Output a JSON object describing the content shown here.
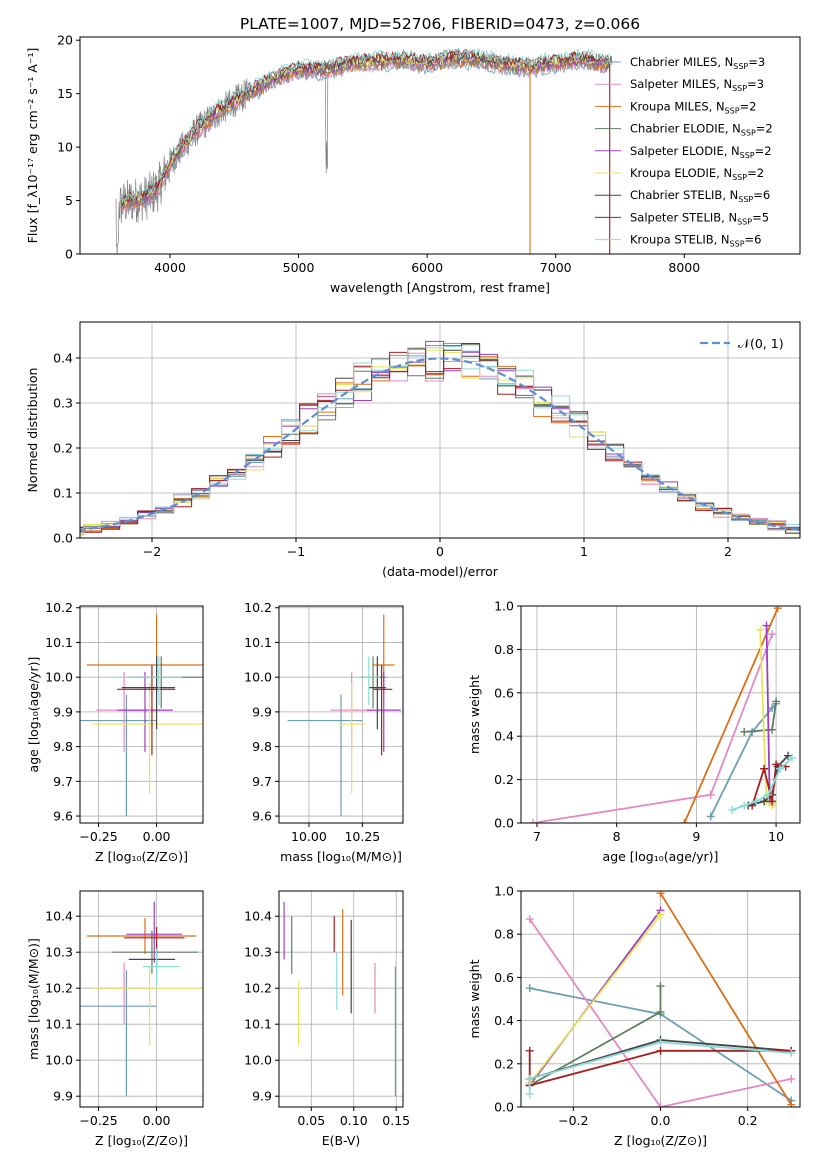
{
  "title": "PLATE=1007, MJD=52706, FIBERID=0473, z=0.066",
  "colors": [
    "#6a9fb5",
    "#e28ac8",
    "#d96f17",
    "#5f7f5f",
    "#9b3fbf",
    "#e8e35a",
    "#444444",
    "#a51f1f",
    "#8adbd8"
  ],
  "chart_data": [
    {
      "id": "spectrum",
      "type": "line",
      "xlabel": "wavelength [Angstrom, rest frame]",
      "ylabel": "Flux [f_λ10⁻¹⁷ erg cm⁻² s⁻¹ A⁻¹]",
      "xlim": [
        3300,
        8900
      ],
      "ylim": [
        0,
        20.3
      ],
      "xticks": [
        4000,
        5000,
        6000,
        7000,
        8000
      ],
      "yticks": [
        0,
        5,
        10,
        15,
        20
      ],
      "grid": false,
      "legend": "upper-right",
      "envelope_x": [
        3600,
        3700,
        3800,
        3900,
        4000,
        4100,
        4200,
        4300,
        4400,
        4600,
        4800,
        5000,
        5200,
        5400,
        5600,
        5800,
        6000,
        6200,
        6400,
        6600,
        6800,
        7000,
        7200,
        7400
      ],
      "envelope_y": [
        4.5,
        5,
        5.2,
        6,
        8.5,
        10,
        11.5,
        12.5,
        13.5,
        15,
        16.3,
        17.3,
        17.2,
        17.8,
        18,
        18.2,
        17.8,
        18.3,
        18.2,
        17.7,
        17.5,
        17.9,
        18.2,
        17.8
      ],
      "dropouts": [
        {
          "x": 6800,
          "series": 2
        },
        {
          "x": 7420,
          "series": 7
        }
      ],
      "legend_entries": [
        {
          "label": "Chabrier MILES",
          "nssp": "3"
        },
        {
          "label": "Salpeter MILES",
          "nssp": "3"
        },
        {
          "label": "Kroupa MILES",
          "nssp": "2"
        },
        {
          "label": "Chabrier ELODIE",
          "nssp": "2"
        },
        {
          "label": "Salpeter ELODIE",
          "nssp": "2"
        },
        {
          "label": "Kroupa ELODIE",
          "nssp": "2"
        },
        {
          "label": "Chabrier STELIB",
          "nssp": "6"
        },
        {
          "label": "Salpeter STELIB",
          "nssp": "5"
        },
        {
          "label": "Kroupa STELIB",
          "nssp": "6"
        }
      ]
    },
    {
      "id": "residuals",
      "type": "histogram",
      "xlabel": "(data-model)/error",
      "ylabel": "Normed distribution",
      "xlim": [
        -2.5,
        2.5
      ],
      "ylim": [
        0,
        0.48
      ],
      "xticks": [
        -2,
        -1,
        0,
        1,
        2
      ],
      "yticks": [
        0.0,
        0.1,
        0.2,
        0.3,
        0.4
      ],
      "grid": true,
      "legend": "upper-right",
      "reference_label": "𝒩(0, 1)",
      "bin_width": 0.125
    },
    {
      "id": "age-vs-Z",
      "type": "errorbar",
      "xlabel": "Z [log₁₀(Z/Z⊙)]",
      "ylabel": "age  [log₁₀(age/yr)]",
      "xlim": [
        -0.33,
        0.2
      ],
      "ylim": [
        9.58,
        10.205
      ],
      "xticks": [
        -0.25,
        0.0
      ],
      "yticks": [
        9.6,
        9.7,
        9.8,
        9.9,
        10.0,
        10.1,
        10.2
      ],
      "grid": true,
      "points": [
        {
          "s": 0,
          "x": -0.13,
          "y": 9.875,
          "xerr": [
            0.25,
            0.13
          ],
          "yerr": [
            0.275,
            0.075
          ]
        },
        {
          "s": 1,
          "x": -0.14,
          "y": 9.905,
          "xerr": [
            0.12,
            0.14
          ],
          "yerr": [
            0.12,
            0.11
          ]
        },
        {
          "s": 2,
          "x": 0.0,
          "y": 10.035,
          "xerr": [
            0.3,
            0.2
          ],
          "yerr": [
            0.08,
            0.145
          ]
        },
        {
          "s": 3,
          "x": 0.02,
          "y": 10.0,
          "xerr": [
            0.14,
            0.2
          ],
          "yerr": [
            0.09,
            0.06
          ]
        },
        {
          "s": 4,
          "x": -0.05,
          "y": 9.905,
          "xerr": [
            0.12,
            0.12
          ],
          "yerr": [
            0.12,
            0.11
          ]
        },
        {
          "s": 5,
          "x": -0.03,
          "y": 9.865,
          "xerr": [
            0.25,
            0.25
          ],
          "yerr": [
            0.2,
            0.12
          ]
        },
        {
          "s": 6,
          "x": 0.0,
          "y": 9.97,
          "xerr": [
            0.15,
            0.08
          ],
          "yerr": [
            0.12,
            0.09
          ]
        },
        {
          "s": 7,
          "x": -0.02,
          "y": 9.965,
          "xerr": [
            0.15,
            0.1
          ],
          "yerr": [
            0.19,
            0.07
          ]
        },
        {
          "s": 8,
          "x": 0.01,
          "y": 10.0,
          "xerr": [
            0.2,
            0.1
          ],
          "yerr": [
            0.08,
            0.06
          ]
        }
      ]
    },
    {
      "id": "age-vs-mass",
      "type": "errorbar",
      "xlabel": "mass [log₁₀(M/M⊙)]",
      "ylabel": "",
      "xlim": [
        9.86,
        10.44
      ],
      "ylim": [
        9.58,
        10.205
      ],
      "xticks": [
        10.0,
        10.25
      ],
      "yticks": [
        9.6,
        9.7,
        9.8,
        9.9,
        10.0,
        10.1,
        10.2
      ],
      "grid": true,
      "points": [
        {
          "s": 0,
          "x": 10.15,
          "y": 9.875,
          "xerr": [
            0.25,
            0.1
          ],
          "yerr": [
            0.275,
            0.075
          ]
        },
        {
          "s": 1,
          "x": 10.2,
          "y": 9.905,
          "xerr": [
            0.1,
            0.1
          ],
          "yerr": [
            0.12,
            0.11
          ]
        },
        {
          "s": 2,
          "x": 10.35,
          "y": 10.035,
          "xerr": [
            0.05,
            0.05
          ],
          "yerr": [
            0.08,
            0.145
          ]
        },
        {
          "s": 3,
          "x": 10.3,
          "y": 10.0,
          "xerr": [
            0.06,
            0.06
          ],
          "yerr": [
            0.09,
            0.06
          ]
        },
        {
          "s": 4,
          "x": 10.35,
          "y": 9.905,
          "xerr": [
            0.08,
            0.08
          ],
          "yerr": [
            0.12,
            0.11
          ]
        },
        {
          "s": 5,
          "x": 10.2,
          "y": 9.865,
          "xerr": [
            0.06,
            0.06
          ],
          "yerr": [
            0.2,
            0.12
          ]
        },
        {
          "s": 6,
          "x": 10.32,
          "y": 9.97,
          "xerr": [
            0.04,
            0.04
          ],
          "yerr": [
            0.12,
            0.09
          ]
        },
        {
          "s": 7,
          "x": 10.34,
          "y": 9.965,
          "xerr": [
            0.04,
            0.05
          ],
          "yerr": [
            0.19,
            0.07
          ]
        },
        {
          "s": 8,
          "x": 10.28,
          "y": 10.0,
          "xerr": [
            0.06,
            0.05
          ],
          "yerr": [
            0.08,
            0.06
          ]
        }
      ]
    },
    {
      "id": "mass-vs-Z",
      "type": "errorbar",
      "xlabel": "Z [log₁₀(Z/Z⊙)]",
      "ylabel": "mass [log₁₀(M/M⊙)]",
      "xlim": [
        -0.33,
        0.2
      ],
      "ylim": [
        9.87,
        10.47
      ],
      "xticks": [
        -0.25,
        0.0
      ],
      "yticks": [
        9.9,
        10.0,
        10.1,
        10.2,
        10.3,
        10.4
      ],
      "grid": true,
      "points": [
        {
          "s": 0,
          "x": -0.13,
          "y": 10.15,
          "xerr": [
            0.25,
            0.13
          ],
          "yerr": [
            0.25,
            0.1
          ]
        },
        {
          "s": 1,
          "x": -0.14,
          "y": 10.2,
          "xerr": [
            0.12,
            0.14
          ],
          "yerr": [
            0.1,
            0.07
          ]
        },
        {
          "s": 2,
          "x": -0.05,
          "y": 10.345,
          "xerr": [
            0.25,
            0.22
          ],
          "yerr": [
            0.05,
            0.05
          ]
        },
        {
          "s": 3,
          "x": -0.02,
          "y": 10.3,
          "xerr": [
            0.17,
            0.2
          ],
          "yerr": [
            0.06,
            0.06
          ]
        },
        {
          "s": 4,
          "x": -0.01,
          "y": 10.35,
          "xerr": [
            0.12,
            0.12
          ],
          "yerr": [
            0.08,
            0.09
          ]
        },
        {
          "s": 5,
          "x": -0.03,
          "y": 10.2,
          "xerr": [
            0.25,
            0.25
          ],
          "yerr": [
            0.16,
            0.06
          ]
        },
        {
          "s": 6,
          "x": 0.0,
          "y": 10.28,
          "xerr": [
            0.12,
            0.08
          ],
          "yerr": [
            0.04,
            0.04
          ]
        },
        {
          "s": 7,
          "x": 0.0,
          "y": 10.34,
          "xerr": [
            0.14,
            0.12
          ],
          "yerr": [
            0.04,
            0.03
          ]
        },
        {
          "s": 8,
          "x": 0.0,
          "y": 10.26,
          "xerr": [
            0.06,
            0.1
          ],
          "yerr": [
            0.05,
            0.05
          ]
        }
      ]
    },
    {
      "id": "mass-vs-EBV",
      "type": "errorbar",
      "xlabel": "E(B-V)",
      "ylabel": "",
      "xlim": [
        0.012,
        0.158
      ],
      "ylim": [
        9.87,
        10.47
      ],
      "xticks": [
        0.05,
        0.1,
        0.15
      ],
      "yticks": [
        9.9,
        10.0,
        10.1,
        10.2,
        10.3,
        10.4
      ],
      "grid": true,
      "points": [
        {
          "s": 0,
          "x": 0.149,
          "y": 10.08,
          "xerr": [
            0,
            0
          ],
          "yerr": [
            0.18,
            0.18
          ]
        },
        {
          "s": 1,
          "x": 0.125,
          "y": 10.2,
          "xerr": [
            0,
            0
          ],
          "yerr": [
            0.07,
            0.07
          ]
        },
        {
          "s": 2,
          "x": 0.087,
          "y": 10.3,
          "xerr": [
            0,
            0
          ],
          "yerr": [
            0.12,
            0.12
          ]
        },
        {
          "s": 3,
          "x": 0.027,
          "y": 10.32,
          "xerr": [
            0,
            0
          ],
          "yerr": [
            0.08,
            0.08
          ]
        },
        {
          "s": 4,
          "x": 0.018,
          "y": 10.36,
          "xerr": [
            0,
            0
          ],
          "yerr": [
            0.08,
            0.08
          ]
        },
        {
          "s": 5,
          "x": 0.035,
          "y": 10.13,
          "xerr": [
            0,
            0
          ],
          "yerr": [
            0.09,
            0.09
          ]
        },
        {
          "s": 6,
          "x": 0.097,
          "y": 10.26,
          "xerr": [
            0,
            0
          ],
          "yerr": [
            0.13,
            0.13
          ]
        },
        {
          "s": 7,
          "x": 0.077,
          "y": 10.35,
          "xerr": [
            0,
            0
          ],
          "yerr": [
            0.05,
            0.05
          ]
        },
        {
          "s": 8,
          "x": 0.08,
          "y": 10.22,
          "xerr": [
            0,
            0
          ],
          "yerr": [
            0.08,
            0.08
          ]
        }
      ]
    },
    {
      "id": "massweight-vs-age",
      "type": "line",
      "xlabel": "age  [log₁₀(age/yr)]",
      "ylabel": "mass weight",
      "xlim": [
        6.8,
        10.3
      ],
      "ylim": [
        0,
        1.0
      ],
      "xticks": [
        7,
        8,
        9,
        10
      ],
      "yticks": [
        0.0,
        0.2,
        0.4,
        0.6,
        0.8,
        1.0
      ],
      "grid": true,
      "series": [
        {
          "s": 0,
          "x": [
            9.18,
            9.7,
            9.95,
            10.0
          ],
          "y": [
            0.03,
            0.42,
            0.53,
            0.55
          ]
        },
        {
          "s": 1,
          "x": [
            6.95,
            9.18,
            9.95
          ],
          "y": [
            0.0,
            0.13,
            0.87
          ]
        },
        {
          "s": 2,
          "x": [
            8.85,
            10.02
          ],
          "y": [
            0.0,
            0.99
          ]
        },
        {
          "s": 3,
          "x": [
            9.6,
            9.95,
            10.0
          ],
          "y": [
            0.42,
            0.43,
            0.56
          ]
        },
        {
          "s": 4,
          "x": [
            9.88,
            9.92,
            9.95
          ],
          "y": [
            0.91,
            0.1,
            0.09
          ]
        },
        {
          "s": 5,
          "x": [
            9.8,
            9.88,
            9.95,
            9.97
          ],
          "y": [
            0.89,
            0.1,
            0.08,
            0.09
          ]
        },
        {
          "s": 6,
          "x": [
            9.65,
            9.85,
            9.95,
            10.02,
            10.15
          ],
          "y": [
            0.08,
            0.1,
            0.13,
            0.26,
            0.31
          ]
        },
        {
          "s": 7,
          "x": [
            9.7,
            9.85,
            9.95,
            10.0,
            10.12
          ],
          "y": [
            0.08,
            0.25,
            0.1,
            0.27,
            0.26
          ]
        },
        {
          "s": 8,
          "x": [
            9.45,
            9.6,
            9.75,
            9.9,
            10.05,
            10.2
          ],
          "y": [
            0.06,
            0.08,
            0.1,
            0.13,
            0.25,
            0.3
          ]
        }
      ]
    },
    {
      "id": "massweight-vs-Z",
      "type": "line",
      "xlabel": "Z [log₁₀(Z/Z⊙)]",
      "ylabel": "mass weight",
      "xlim": [
        -0.32,
        0.32
      ],
      "ylim": [
        0,
        1.0
      ],
      "xticks": [
        -0.2,
        0.0,
        0.2
      ],
      "yticks": [
        0.0,
        0.2,
        0.4,
        0.6,
        0.8,
        1.0
      ],
      "grid": true,
      "series": [
        {
          "s": 0,
          "x": [
            -0.3,
            0.0,
            0.3
          ],
          "y": [
            0.55,
            0.43,
            0.03
          ]
        },
        {
          "s": 1,
          "x": [
            -0.3,
            0.0,
            0.3
          ],
          "y": [
            0.87,
            0.0,
            0.13
          ]
        },
        {
          "s": 2,
          "x": [
            0.0,
            0.3
          ],
          "y": [
            0.99,
            0.01
          ]
        },
        {
          "s": 3,
          "x": [
            -0.3,
            0.0,
            0.0
          ],
          "y": [
            0.1,
            0.44,
            0.56
          ]
        },
        {
          "s": 4,
          "x": [
            -0.3,
            0.0
          ],
          "y": [
            0.1,
            0.91
          ]
        },
        {
          "s": 5,
          "x": [
            -0.3,
            0.0
          ],
          "y": [
            0.11,
            0.89
          ]
        },
        {
          "s": 6,
          "x": [
            -0.3,
            0.0,
            0.3
          ],
          "y": [
            0.13,
            0.31,
            0.26
          ]
        },
        {
          "s": 7,
          "x": [
            -0.3,
            -0.3,
            0.0,
            0.3
          ],
          "y": [
            0.26,
            0.1,
            0.26,
            0.26
          ]
        },
        {
          "s": 8,
          "x": [
            -0.3,
            -0.3,
            0.0,
            0.3
          ],
          "y": [
            0.06,
            0.13,
            0.3,
            0.25
          ]
        }
      ]
    }
  ]
}
